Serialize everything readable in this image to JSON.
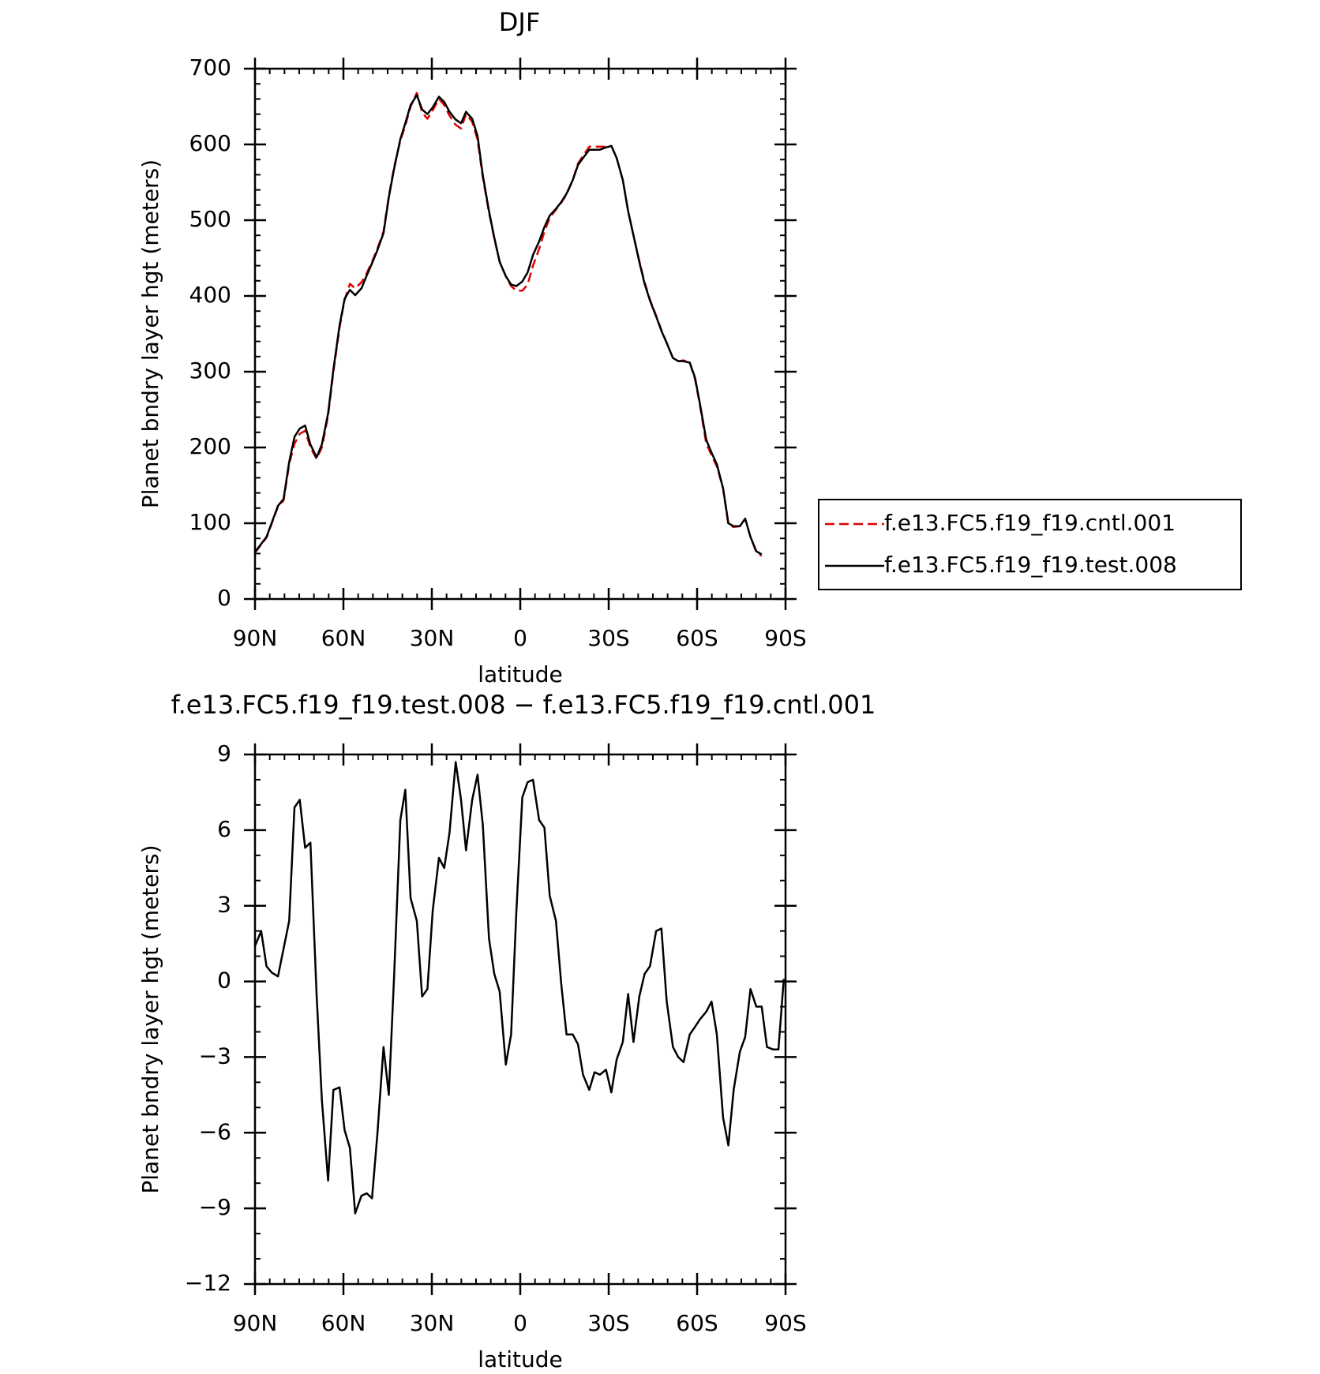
{
  "chart_data": [
    {
      "type": "line",
      "title": "DJF",
      "xlabel": "latitude",
      "ylabel": "Planet bndry layer hgt (meters)",
      "x": [
        90,
        86.1,
        82.2,
        80.3,
        78.4,
        76.6,
        74.8,
        73.0,
        71.2,
        69.1,
        67.3,
        65.2,
        63.4,
        61.3,
        59.6,
        57.8,
        56.0,
        53.9,
        52.1,
        50.3,
        48.5,
        46.4,
        44.6,
        42.8,
        40.7,
        39.0,
        37.2,
        35.1,
        33.3,
        31.5,
        29.7,
        27.6,
        25.8,
        24.0,
        22.0,
        20.1,
        18.4,
        16.3,
        14.5,
        12.7,
        10.6,
        8.8,
        7.0,
        4.9,
        3.1,
        1.3,
        -0.7,
        -2.5,
        -4.3,
        -6.4,
        -8.2,
        -10.0,
        -12.1,
        -13.9,
        -15.7,
        -17.8,
        -19.6,
        -21.3,
        -23.4,
        -25.2,
        -27.0,
        -29.1,
        -30.9,
        -32.7,
        -34.8,
        -36.6,
        -38.4,
        -40.4,
        -42.2,
        -44.0,
        -46.1,
        -47.9,
        -49.7,
        -51.8,
        -53.6,
        -55.4,
        -57.5,
        -59.3,
        -61.0,
        -63.1,
        -64.9,
        -66.7,
        -68.8,
        -70.6,
        -72.4,
        -74.5,
        -76.3,
        -78.1,
        -80.1,
        -81.9
      ],
      "series": [
        {
          "name": "f.e13.FC5.f19_f19.cntl.001",
          "color": "#e00000",
          "dash": true,
          "values": [
            61,
            81,
            122,
            130,
            178,
            205,
            218,
            222,
            200,
            185,
            200,
            242,
            300,
            358,
            395,
            416,
            410,
            418,
            430,
            445,
            462,
            485,
            532,
            570,
            605,
            625,
            650,
            668,
            642,
            634,
            645,
            660,
            652,
            638,
            626,
            621,
            640,
            630,
            606,
            556,
            510,
            476,
            445,
            426,
            413,
            407,
            407,
            415,
            440,
            462,
            485,
            503,
            514,
            523,
            534,
            553,
            575,
            585,
            597,
            597,
            597,
            597,
            598,
            582,
            553,
            512,
            480,
            446,
            418,
            395,
            374,
            355,
            338,
            318,
            314,
            315,
            312,
            290,
            255,
            205,
            190,
            175,
            146,
            98,
            95,
            96,
            106,
            82,
            62,
            57
          ]
        },
        {
          "name": "f.e13.FC5.f19_f19.test.008",
          "color": "#000000",
          "dash": false,
          "values": [
            62,
            82,
            123,
            132,
            181,
            214,
            225,
            229,
            204,
            187,
            204,
            245,
            303,
            361,
            396,
            408,
            401,
            410,
            427,
            443,
            460,
            483,
            530,
            568,
            607,
            628,
            652,
            665,
            646,
            640,
            649,
            663,
            656,
            643,
            633,
            628,
            643,
            634,
            611,
            559,
            512,
            477,
            445,
            426,
            415,
            413,
            419,
            431,
            454,
            472,
            491,
            506,
            515,
            524,
            535,
            553,
            573,
            582,
            593,
            593,
            593,
            596,
            598,
            582,
            553,
            512,
            480,
            445,
            416,
            394,
            373,
            354,
            338,
            318,
            314,
            314,
            312,
            292,
            257,
            210,
            193,
            178,
            146,
            100,
            96,
            96,
            106,
            82,
            63,
            59
          ]
        }
      ],
      "xlim": [
        90,
        -90
      ],
      "xticks": [
        {
          "value": 90,
          "label": "90N"
        },
        {
          "value": 60,
          "label": "60N"
        },
        {
          "value": 30,
          "label": "30N"
        },
        0,
        {
          "value": -30,
          "label": "30S"
        },
        {
          "value": -60,
          "label": "60S"
        },
        {
          "value": -90,
          "label": "90S"
        }
      ],
      "ylim": [
        0,
        700
      ],
      "yticks": [
        0,
        100,
        200,
        300,
        400,
        500,
        600,
        700
      ],
      "legend": "right"
    },
    {
      "type": "line",
      "title": "f.e13.FC5.f19_f19.test.008 − f.e13.FC5.f19_f19.cntl.001",
      "xlabel": "latitude",
      "ylabel": "Planet bndry layer hgt (meters)",
      "x": [
        90,
        87.9,
        86.1,
        84.3,
        82.2,
        78.4,
        76.6,
        74.8,
        73.0,
        71.2,
        69.1,
        67.3,
        65.2,
        63.4,
        61.3,
        59.6,
        57.8,
        56.0,
        53.9,
        52.1,
        50.3,
        48.5,
        46.4,
        44.6,
        42.8,
        40.7,
        39.0,
        37.2,
        35.1,
        33.3,
        31.5,
        29.7,
        27.6,
        25.8,
        24.0,
        21.9,
        20.1,
        18.4,
        16.3,
        14.5,
        12.7,
        10.6,
        8.8,
        7.0,
        4.9,
        3.1,
        1.3,
        -0.7,
        -2.5,
        -4.3,
        -6.4,
        -8.2,
        -10.0,
        -12.1,
        -13.9,
        -15.7,
        -17.8,
        -19.6,
        -21.3,
        -23.4,
        -25.2,
        -27.0,
        -29.1,
        -30.9,
        -32.7,
        -34.8,
        -36.6,
        -38.4,
        -40.4,
        -42.2,
        -44.0,
        -46.1,
        -47.9,
        -49.7,
        -51.8,
        -53.6,
        -55.4,
        -57.5,
        -59.3,
        -61.0,
        -63.1,
        -64.9,
        -66.7,
        -68.8,
        -70.6,
        -72.4,
        -74.5,
        -76.3,
        -78.1,
        -80.1,
        -81.9,
        -83.7,
        -85.8,
        -87.6,
        -89.4
      ],
      "color": "#000000",
      "values": [
        1.4,
        2.0,
        0.6,
        0.35,
        0.2,
        2.4,
        6.9,
        7.2,
        5.3,
        5.5,
        -0.5,
        -4.7,
        -7.9,
        -4.3,
        -4.2,
        -5.9,
        -6.6,
        -9.2,
        -8.5,
        -8.4,
        -8.6,
        -6.1,
        -2.6,
        -4.5,
        0.2,
        6.4,
        7.6,
        3.3,
        2.4,
        -0.6,
        -0.3,
        2.8,
        4.9,
        4.5,
        5.9,
        8.7,
        7.2,
        5.2,
        7.2,
        8.2,
        6.2,
        1.7,
        0.3,
        -0.4,
        -3.3,
        -2.1,
        2.8,
        7.3,
        7.9,
        8.0,
        6.4,
        6.1,
        3.4,
        2.4,
        -0.1,
        -2.1,
        -2.1,
        -2.5,
        -3.7,
        -4.3,
        -3.6,
        -3.7,
        -3.5,
        -4.4,
        -3.1,
        -2.4,
        -0.5,
        -2.4,
        -0.6,
        0.3,
        0.6,
        2.0,
        2.1,
        -0.8,
        -2.6,
        -3.0,
        -3.2,
        -2.1,
        -1.8,
        -1.5,
        -1.2,
        -0.8,
        -2.1,
        -5.4,
        -6.5,
        -4.3,
        -2.8,
        -2.2,
        -0.3,
        -1.0,
        -1.0,
        -2.6,
        -2.7,
        -2.7,
        0.1
      ],
      "xlim": [
        90,
        -90
      ],
      "xticks": [
        {
          "value": 90,
          "label": "90N"
        },
        {
          "value": 60,
          "label": "60N"
        },
        {
          "value": 30,
          "label": "30N"
        },
        0,
        {
          "value": -30,
          "label": "30S"
        },
        {
          "value": -60,
          "label": "60S"
        },
        {
          "value": -90,
          "label": "90S"
        }
      ],
      "ylim": [
        -12,
        9
      ],
      "yticks": [
        {
          "value": -12,
          "label": "−12"
        },
        {
          "value": -9,
          "label": "−9"
        },
        {
          "value": -6,
          "label": "−6"
        },
        {
          "value": -3,
          "label": "−3"
        },
        0,
        3,
        6,
        9
      ]
    }
  ]
}
